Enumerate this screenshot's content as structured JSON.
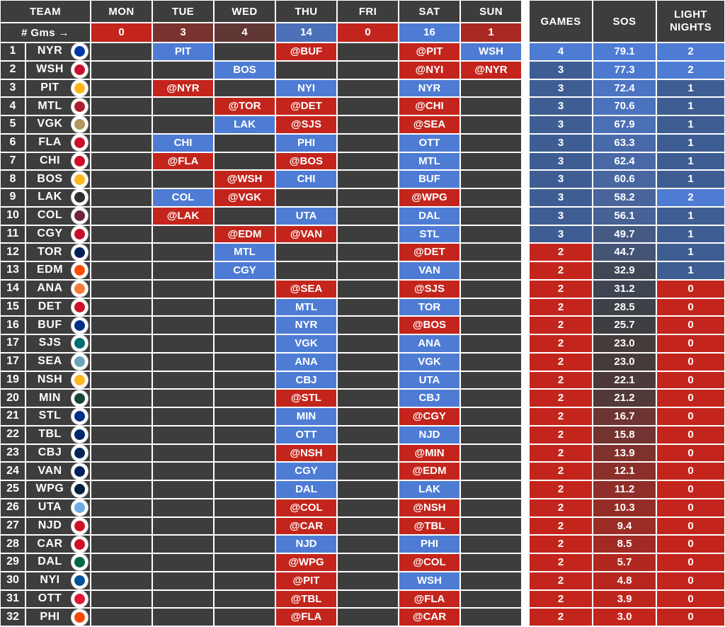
{
  "chart_data": {
    "type": "table",
    "columns": [
      "TEAM",
      "MON",
      "TUE",
      "WED",
      "THU",
      "FRI",
      "SAT",
      "SUN",
      "GAMES",
      "SOS",
      "LIGHT NIGHTS"
    ],
    "gms_row": {
      "label": "# Gms →",
      "values": [
        "0",
        "3",
        "4",
        "14",
        "0",
        "16",
        "1"
      ]
    },
    "rows": [
      {
        "rank": "1",
        "team": "NYR",
        "logo_color": "#0038A8",
        "days": [
          "",
          "PIT",
          "",
          "@BUF",
          "",
          "@PIT",
          "WSH"
        ],
        "games": "4",
        "sos": "79.1",
        "light": "2"
      },
      {
        "rank": "2",
        "team": "WSH",
        "logo_color": "#C8102E",
        "days": [
          "",
          "",
          "BOS",
          "",
          "",
          "@NYI",
          "@NYR"
        ],
        "games": "3",
        "sos": "77.3",
        "light": "2"
      },
      {
        "rank": "3",
        "team": "PIT",
        "logo_color": "#FCB514",
        "days": [
          "",
          "@NYR",
          "",
          "NYI",
          "",
          "NYR",
          ""
        ],
        "games": "3",
        "sos": "72.4",
        "light": "1"
      },
      {
        "rank": "4",
        "team": "MTL",
        "logo_color": "#AF1E2D",
        "days": [
          "",
          "",
          "@TOR",
          "@DET",
          "",
          "@CHI",
          ""
        ],
        "games": "3",
        "sos": "70.6",
        "light": "1"
      },
      {
        "rank": "5",
        "team": "VGK",
        "logo_color": "#B4975A",
        "days": [
          "",
          "",
          "LAK",
          "@SJS",
          "",
          "@SEA",
          ""
        ],
        "games": "3",
        "sos": "67.9",
        "light": "1"
      },
      {
        "rank": "6",
        "team": "FLA",
        "logo_color": "#C8102E",
        "days": [
          "",
          "CHI",
          "",
          "PHI",
          "",
          "OTT",
          ""
        ],
        "games": "3",
        "sos": "63.3",
        "light": "1"
      },
      {
        "rank": "7",
        "team": "CHI",
        "logo_color": "#CF0A2C",
        "days": [
          "",
          "@FLA",
          "",
          "@BOS",
          "",
          "MTL",
          ""
        ],
        "games": "3",
        "sos": "62.4",
        "light": "1"
      },
      {
        "rank": "8",
        "team": "BOS",
        "logo_color": "#FFB81C",
        "days": [
          "",
          "",
          "@WSH",
          "CHI",
          "",
          "BUF",
          ""
        ],
        "games": "3",
        "sos": "60.6",
        "light": "1"
      },
      {
        "rank": "9",
        "team": "LAK",
        "logo_color": "#2E2E2E",
        "days": [
          "",
          "COL",
          "@VGK",
          "",
          "",
          "@WPG",
          ""
        ],
        "games": "3",
        "sos": "58.2",
        "light": "2"
      },
      {
        "rank": "10",
        "team": "COL",
        "logo_color": "#6F263D",
        "days": [
          "",
          "@LAK",
          "",
          "UTA",
          "",
          "DAL",
          ""
        ],
        "games": "3",
        "sos": "56.1",
        "light": "1"
      },
      {
        "rank": "11",
        "team": "CGY",
        "logo_color": "#C8102E",
        "days": [
          "",
          "",
          "@EDM",
          "@VAN",
          "",
          "STL",
          ""
        ],
        "games": "3",
        "sos": "49.7",
        "light": "1"
      },
      {
        "rank": "12",
        "team": "TOR",
        "logo_color": "#00205B",
        "days": [
          "",
          "",
          "MTL",
          "",
          "",
          "@DET",
          ""
        ],
        "games": "2",
        "sos": "44.7",
        "light": "1"
      },
      {
        "rank": "13",
        "team": "EDM",
        "logo_color": "#FF4C00",
        "days": [
          "",
          "",
          "CGY",
          "",
          "",
          "VAN",
          ""
        ],
        "games": "2",
        "sos": "32.9",
        "light": "1"
      },
      {
        "rank": "14",
        "team": "ANA",
        "logo_color": "#F47A38",
        "days": [
          "",
          "",
          "",
          "@SEA",
          "",
          "@SJS",
          ""
        ],
        "games": "2",
        "sos": "31.2",
        "light": "0"
      },
      {
        "rank": "15",
        "team": "DET",
        "logo_color": "#CE1126",
        "days": [
          "",
          "",
          "",
          "MTL",
          "",
          "TOR",
          ""
        ],
        "games": "2",
        "sos": "28.5",
        "light": "0"
      },
      {
        "rank": "16",
        "team": "BUF",
        "logo_color": "#003087",
        "days": [
          "",
          "",
          "",
          "NYR",
          "",
          "@BOS",
          ""
        ],
        "games": "2",
        "sos": "25.7",
        "light": "0"
      },
      {
        "rank": "17",
        "team": "SJS",
        "logo_color": "#006D75",
        "days": [
          "",
          "",
          "",
          "VGK",
          "",
          "ANA",
          ""
        ],
        "games": "2",
        "sos": "23.0",
        "light": "0"
      },
      {
        "rank": "17",
        "team": "SEA",
        "logo_color": "#6BA4B8",
        "days": [
          "",
          "",
          "",
          "ANA",
          "",
          "VGK",
          ""
        ],
        "games": "2",
        "sos": "23.0",
        "light": "0"
      },
      {
        "rank": "19",
        "team": "NSH",
        "logo_color": "#FFB81C",
        "days": [
          "",
          "",
          "",
          "CBJ",
          "",
          "UTA",
          ""
        ],
        "games": "2",
        "sos": "22.1",
        "light": "0"
      },
      {
        "rank": "20",
        "team": "MIN",
        "logo_color": "#154734",
        "days": [
          "",
          "",
          "",
          "@STL",
          "",
          "CBJ",
          ""
        ],
        "games": "2",
        "sos": "21.2",
        "light": "0"
      },
      {
        "rank": "21",
        "team": "STL",
        "logo_color": "#002F87",
        "days": [
          "",
          "",
          "",
          "MIN",
          "",
          "@CGY",
          ""
        ],
        "games": "2",
        "sos": "16.7",
        "light": "0"
      },
      {
        "rank": "22",
        "team": "TBL",
        "logo_color": "#00286B",
        "days": [
          "",
          "",
          "",
          "OTT",
          "",
          "NJD",
          ""
        ],
        "games": "2",
        "sos": "15.8",
        "light": "0"
      },
      {
        "rank": "23",
        "team": "CBJ",
        "logo_color": "#002654",
        "days": [
          "",
          "",
          "",
          "@NSH",
          "",
          "@MIN",
          ""
        ],
        "games": "2",
        "sos": "13.9",
        "light": "0"
      },
      {
        "rank": "24",
        "team": "VAN",
        "logo_color": "#00205B",
        "days": [
          "",
          "",
          "",
          "CGY",
          "",
          "@EDM",
          ""
        ],
        "games": "2",
        "sos": "12.1",
        "light": "0"
      },
      {
        "rank": "25",
        "team": "WPG",
        "logo_color": "#041E42",
        "days": [
          "",
          "",
          "",
          "DAL",
          "",
          "LAK",
          ""
        ],
        "games": "2",
        "sos": "11.2",
        "light": "0"
      },
      {
        "rank": "26",
        "team": "UTA",
        "logo_color": "#6CACE4",
        "days": [
          "",
          "",
          "",
          "@COL",
          "",
          "@NSH",
          ""
        ],
        "games": "2",
        "sos": "10.3",
        "light": "0"
      },
      {
        "rank": "27",
        "team": "NJD",
        "logo_color": "#CE1126",
        "days": [
          "",
          "",
          "",
          "@CAR",
          "",
          "@TBL",
          ""
        ],
        "games": "2",
        "sos": "9.4",
        "light": "0"
      },
      {
        "rank": "28",
        "team": "CAR",
        "logo_color": "#CE1126",
        "days": [
          "",
          "",
          "",
          "NJD",
          "",
          "PHI",
          ""
        ],
        "games": "2",
        "sos": "8.5",
        "light": "0"
      },
      {
        "rank": "29",
        "team": "DAL",
        "logo_color": "#006847",
        "days": [
          "",
          "",
          "",
          "@WPG",
          "",
          "@COL",
          ""
        ],
        "games": "2",
        "sos": "5.7",
        "light": "0"
      },
      {
        "rank": "30",
        "team": "NYI",
        "logo_color": "#00539B",
        "days": [
          "",
          "",
          "",
          "@PIT",
          "",
          "WSH",
          ""
        ],
        "games": "2",
        "sos": "4.8",
        "light": "0"
      },
      {
        "rank": "31",
        "team": "OTT",
        "logo_color": "#DA1A32",
        "days": [
          "",
          "",
          "",
          "@TBL",
          "",
          "@FLA",
          ""
        ],
        "games": "2",
        "sos": "3.9",
        "light": "0"
      },
      {
        "rank": "32",
        "team": "PHI",
        "logo_color": "#F74902",
        "days": [
          "",
          "",
          "",
          "@FLA",
          "",
          "@CAR",
          ""
        ],
        "games": "2",
        "sos": "3.0",
        "light": "0"
      }
    ]
  },
  "colors": {
    "cell_bg": "#3D3D3D",
    "text": "#FFFFFF",
    "home_blue": "#4E7CD4",
    "away_red": "#C3251C",
    "scale_low": "#C3251C",
    "scale_mid": "#3D3D3D",
    "scale_high": "#4E7CD4",
    "games_2": "#C3251C",
    "games_3": "#3E5E93",
    "games_4": "#4E7CD4",
    "light_0": "#C3251C",
    "light_1": "#3E5E93",
    "light_2": "#4E7CD4"
  },
  "scales": {
    "sos": {
      "min": 3.0,
      "mid": 24.4,
      "max": 79.1
    },
    "gms": {
      "min": 0,
      "mid": 5.4,
      "max": 16
    }
  }
}
